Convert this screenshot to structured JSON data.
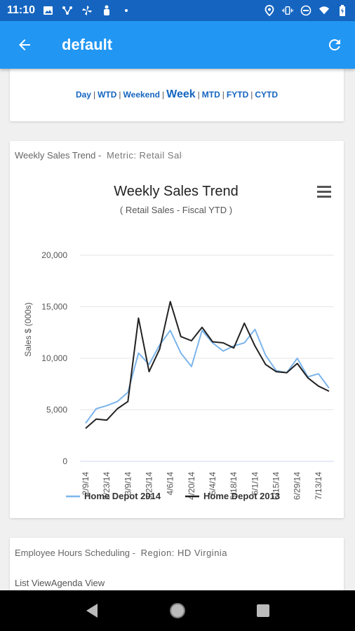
{
  "status_bar": {
    "time": "11:10",
    "icons_left": [
      "image-icon",
      "network-icon",
      "fan-icon",
      "figure-icon",
      "dot-icon"
    ],
    "icons_right": [
      "location-icon",
      "vibrate-icon",
      "dnd-icon",
      "wifi-icon",
      "battery-icon"
    ]
  },
  "app_bar": {
    "title": "default",
    "back_icon": "arrow-back-icon",
    "refresh_icon": "refresh-icon",
    "color": "#2196f3"
  },
  "period_selector": {
    "options": [
      "Day",
      "WTD",
      "Weekend",
      "Week",
      "MTD",
      "FYTD",
      "CYTD"
    ],
    "selected": "Week",
    "link_color": "#1565c0"
  },
  "sales_card": {
    "header_label": "Weekly Sales Trend -",
    "metric_label": "Metric: Retail Sales"
  },
  "chart_data": {
    "type": "line",
    "title": "Weekly Sales Trend",
    "subtitle": "( Retail Sales - Fiscal YTD )",
    "xlabel": "",
    "ylabel": "Sales $ (000s)",
    "ylim": [
      0,
      20000
    ],
    "yticks": [
      "20,000",
      "15,000",
      "10,000",
      "5,000",
      "0"
    ],
    "ytick_values": [
      20000,
      15000,
      10000,
      5000,
      0
    ],
    "xtick_labels": [
      "2/9/14",
      "2/23/14",
      "3/9/14",
      "3/23/14",
      "4/6/14",
      "4/20/14",
      "5/4/14",
      "5/18/14",
      "6/1/14",
      "6/15/14",
      "6/29/14",
      "7/13/14"
    ],
    "grid": true,
    "legend_position": "bottom",
    "menu_icon": "hamburger-menu-icon",
    "series": [
      {
        "name": "Home Depot 2014",
        "color": "#7cb5ec",
        "values": [
          3700,
          5100,
          5400,
          5800,
          6700,
          10500,
          9400,
          11300,
          12700,
          10500,
          9200,
          12700,
          11500,
          10700,
          11200,
          11500,
          12800,
          10300,
          8800,
          8600,
          10000,
          8200,
          8500,
          7100
        ]
      },
      {
        "name": "Home Depot 2013",
        "color": "#222222",
        "values": [
          3200,
          4100,
          4000,
          5100,
          5800,
          13900,
          8700,
          10900,
          15500,
          12100,
          11700,
          13000,
          11600,
          11500,
          11000,
          13400,
          11200,
          9400,
          8700,
          8600,
          9500,
          8100,
          7300,
          6800
        ]
      }
    ]
  },
  "employee_card": {
    "header_label": "Employee Hours Scheduling -",
    "region_label": "Region: HD Virginia",
    "view_options": "List ViewAgenda View"
  },
  "nav_bar": {
    "icons": [
      "back-triangle-icon",
      "home-circle-icon",
      "recents-square-icon"
    ]
  }
}
